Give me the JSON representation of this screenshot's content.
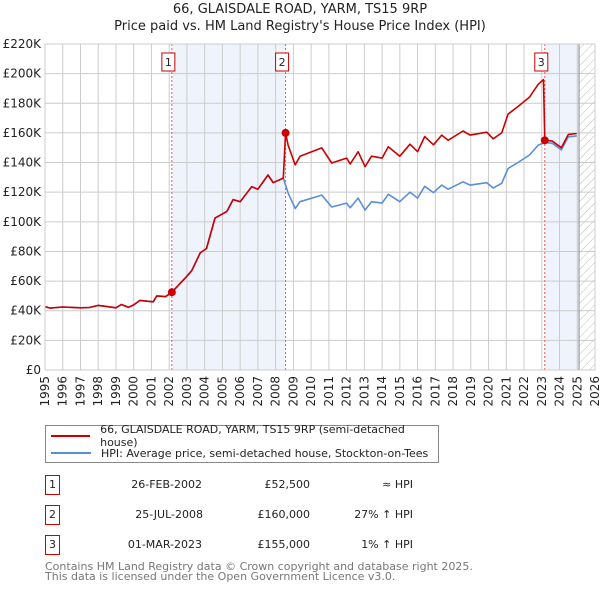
{
  "title": {
    "line1": "66, GLAISDALE ROAD, YARM, TS15 9RP",
    "line2": "Price paid vs. HM Land Registry's House Price Index (HPI)"
  },
  "legend": {
    "property": "66, GLAISDALE ROAD, YARM, TS15 9RP (semi-detached house)",
    "hpi": "HPI: Average price, semi-detached house, Stockton-on-Tees"
  },
  "sales": [
    {
      "num": "1",
      "date": "26-FEB-2002",
      "price": "£52,500",
      "hpi": "≈ HPI"
    },
    {
      "num": "2",
      "date": "25-JUL-2008",
      "price": "£160,000",
      "hpi": "27% ↑ HPI"
    },
    {
      "num": "3",
      "date": "01-MAR-2023",
      "price": "£155,000",
      "hpi": "1% ↑ HPI"
    }
  ],
  "footer": {
    "line1": "Contains HM Land Registry data © Crown copyright and database right 2025.",
    "line2": "This data is licensed under the Open Government Licence v3.0."
  },
  "colors": {
    "property": "#cc0000",
    "hpi": "#5b8fd4",
    "shade": "#eef3fc",
    "grid": "#cccccc"
  },
  "chart_data": {
    "type": "line",
    "title": "66, GLAISDALE ROAD, YARM, TS15 9RP — Price paid vs. HM Land Registry's House Price Index (HPI)",
    "xlim": [
      1995,
      2026
    ],
    "ylim": [
      0,
      220000
    ],
    "x_ticks": [
      "1995",
      "1996",
      "1997",
      "1998",
      "1999",
      "2000",
      "2001",
      "2002",
      "2003",
      "2004",
      "2005",
      "2006",
      "2007",
      "2008",
      "2009",
      "2010",
      "2011",
      "2012",
      "2013",
      "2014",
      "2015",
      "2016",
      "2017",
      "2018",
      "2019",
      "2020",
      "2021",
      "2022",
      "2023",
      "2024",
      "2025",
      "2026"
    ],
    "y_ticks": [
      {
        "v": 0,
        "label": "£0"
      },
      {
        "v": 20000,
        "label": "£20K"
      },
      {
        "v": 40000,
        "label": "£40K"
      },
      {
        "v": 60000,
        "label": "£60K"
      },
      {
        "v": 80000,
        "label": "£80K"
      },
      {
        "v": 100000,
        "label": "£100K"
      },
      {
        "v": 120000,
        "label": "£120K"
      },
      {
        "v": 140000,
        "label": "£140K"
      },
      {
        "v": 160000,
        "label": "£160K"
      },
      {
        "v": 180000,
        "label": "£180K"
      },
      {
        "v": 200000,
        "label": "£200K"
      },
      {
        "v": 220000,
        "label": "£220K"
      }
    ],
    "grid": true,
    "data_end_year": 2025.1,
    "sale_markers": [
      {
        "label": "1",
        "x": 2002.15,
        "y": 52500
      },
      {
        "label": "2",
        "x": 2008.56,
        "y": 160000
      },
      {
        "label": "3",
        "x": 2023.17,
        "y": 155000
      }
    ],
    "shaded_ranges": [
      [
        2002.15,
        2008.56
      ],
      [
        2023.17,
        2025.1
      ]
    ],
    "series": [
      {
        "name": "HPI: Average price, semi-detached house, Stockton-on-Tees",
        "points": [
          [
            1995.0,
            42700
          ],
          [
            1995.3,
            41800
          ],
          [
            1996.0,
            42500
          ],
          [
            1997.0,
            42000
          ],
          [
            1997.5,
            42200
          ],
          [
            1998.0,
            43600
          ],
          [
            1998.5,
            42800
          ],
          [
            1999.0,
            42000
          ],
          [
            1999.3,
            44200
          ],
          [
            1999.7,
            42300
          ],
          [
            2000.0,
            43900
          ],
          [
            2000.35,
            47000
          ],
          [
            2001.1,
            46000
          ],
          [
            2001.3,
            50000
          ],
          [
            2001.8,
            49500
          ],
          [
            2002.15,
            52500
          ],
          [
            2002.9,
            62000
          ],
          [
            2003.27,
            67000
          ],
          [
            2003.75,
            79000
          ],
          [
            2004.1,
            82000
          ],
          [
            2004.58,
            102500
          ],
          [
            2005.25,
            107000
          ],
          [
            2005.6,
            115000
          ],
          [
            2006.0,
            113600
          ],
          [
            2006.65,
            123700
          ],
          [
            2007.0,
            122000
          ],
          [
            2007.57,
            131600
          ],
          [
            2007.86,
            126400
          ],
          [
            2008.43,
            129500
          ],
          [
            2008.7,
            119500
          ],
          [
            2009.1,
            109000
          ],
          [
            2009.37,
            113600
          ],
          [
            2010.6,
            118000
          ],
          [
            2011.16,
            110000
          ],
          [
            2012.0,
            112600
          ],
          [
            2012.2,
            109500
          ],
          [
            2012.65,
            116000
          ],
          [
            2013.04,
            108000
          ],
          [
            2013.4,
            113600
          ],
          [
            2014.0,
            112600
          ],
          [
            2014.35,
            118600
          ],
          [
            2015.0,
            113600
          ],
          [
            2015.57,
            120000
          ],
          [
            2016.0,
            116000
          ],
          [
            2016.4,
            124000
          ],
          [
            2016.9,
            119700
          ],
          [
            2017.36,
            124800
          ],
          [
            2017.72,
            122000
          ],
          [
            2018.56,
            127000
          ],
          [
            2018.96,
            124800
          ],
          [
            2019.9,
            126400
          ],
          [
            2020.26,
            122800
          ],
          [
            2020.74,
            126000
          ],
          [
            2021.1,
            136000
          ],
          [
            2021.66,
            140000
          ],
          [
            2022.3,
            145000
          ],
          [
            2022.8,
            151800
          ],
          [
            2023.17,
            153500
          ],
          [
            2023.6,
            153000
          ],
          [
            2024.1,
            148500
          ],
          [
            2024.5,
            157400
          ],
          [
            2024.97,
            158000
          ]
        ]
      },
      {
        "name": "66, GLAISDALE ROAD, YARM, TS15 9RP (semi-detached house)",
        "points": [
          [
            1995.0,
            42700
          ],
          [
            1995.3,
            41800
          ],
          [
            1996.0,
            42500
          ],
          [
            1997.0,
            42000
          ],
          [
            1997.5,
            42200
          ],
          [
            1998.0,
            43600
          ],
          [
            1998.5,
            42800
          ],
          [
            1999.0,
            42000
          ],
          [
            1999.3,
            44200
          ],
          [
            1999.7,
            42300
          ],
          [
            2000.0,
            43900
          ],
          [
            2000.35,
            47000
          ],
          [
            2001.1,
            46000
          ],
          [
            2001.3,
            50000
          ],
          [
            2001.8,
            49500
          ],
          [
            2002.15,
            52500
          ],
          [
            2002.9,
            62000
          ],
          [
            2003.27,
            67000
          ],
          [
            2003.75,
            79000
          ],
          [
            2004.1,
            82000
          ],
          [
            2004.58,
            102500
          ],
          [
            2005.25,
            107000
          ],
          [
            2005.6,
            115000
          ],
          [
            2006.0,
            113600
          ],
          [
            2006.65,
            123700
          ],
          [
            2007.0,
            122000
          ],
          [
            2007.57,
            131600
          ],
          [
            2007.86,
            126400
          ],
          [
            2008.43,
            129500
          ],
          [
            2008.56,
            160000
          ],
          [
            2008.7,
            151800
          ],
          [
            2009.1,
            138400
          ],
          [
            2009.37,
            144300
          ],
          [
            2010.6,
            149900
          ],
          [
            2011.16,
            139700
          ],
          [
            2012.0,
            143000
          ],
          [
            2012.2,
            139000
          ],
          [
            2012.65,
            147300
          ],
          [
            2013.04,
            137200
          ],
          [
            2013.4,
            144300
          ],
          [
            2014.0,
            143000
          ],
          [
            2014.35,
            150600
          ],
          [
            2015.0,
            144300
          ],
          [
            2015.57,
            152400
          ],
          [
            2016.0,
            147300
          ],
          [
            2016.4,
            157500
          ],
          [
            2016.9,
            152000
          ],
          [
            2017.36,
            158500
          ],
          [
            2017.72,
            155000
          ],
          [
            2018.56,
            161300
          ],
          [
            2018.96,
            158500
          ],
          [
            2019.9,
            160500
          ],
          [
            2020.26,
            156000
          ],
          [
            2020.74,
            160000
          ],
          [
            2021.1,
            172700
          ],
          [
            2021.66,
            177800
          ],
          [
            2022.3,
            184000
          ],
          [
            2022.8,
            192800
          ],
          [
            2023.1,
            196000
          ],
          [
            2023.17,
            155000
          ],
          [
            2023.6,
            154500
          ],
          [
            2024.1,
            150000
          ],
          [
            2024.5,
            159000
          ],
          [
            2024.97,
            159600
          ]
        ]
      }
    ]
  }
}
